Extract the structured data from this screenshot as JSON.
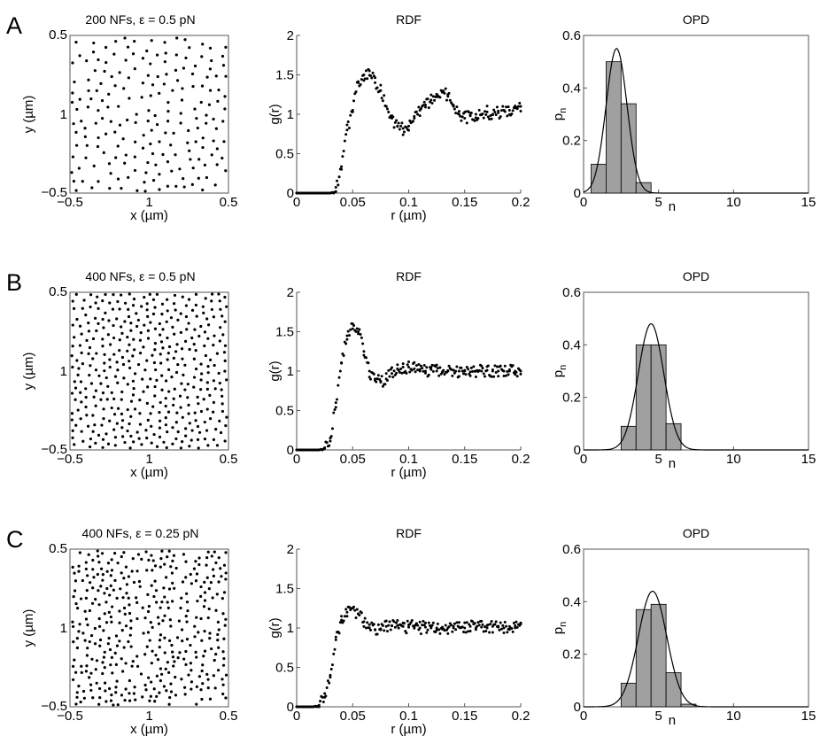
{
  "rows": [
    {
      "label": "A",
      "scatter": {
        "title": "200 NFs,  ε = 0.5 pN",
        "n_points": 200,
        "xlabel": "x (µm)",
        "ylabel": "y (µm)",
        "xlim": [
          -0.5,
          0.5
        ],
        "ylim": [
          -0.5,
          0.5
        ],
        "xticks": [
          "−0.5",
          "1",
          "0.5"
        ],
        "yticks": [
          "0.5",
          "1",
          "−0.5"
        ]
      },
      "rdf": {
        "title": "RDF",
        "xlabel": "r (µm)",
        "ylabel": "g(r)",
        "xlim": [
          0,
          0.2
        ],
        "ylim": [
          0,
          2
        ],
        "xticks": [
          "0",
          "0.05",
          "0.1",
          "0.15",
          "0.2"
        ],
        "yticks": [
          "0",
          "0.5",
          "1",
          "1.5",
          "2"
        ]
      },
      "opd": {
        "title": "OPD",
        "xlabel": "n",
        "ylabel_base": "p",
        "ylabel_sub": "n",
        "xlim": [
          0,
          15
        ],
        "ylim": [
          0,
          0.6
        ],
        "xticks": [
          "0",
          "5",
          "10",
          "15"
        ],
        "yticks": [
          "0",
          "0.2",
          "0.4",
          "0.6"
        ]
      }
    },
    {
      "label": "B",
      "scatter": {
        "title": "400 NFs,  ε = 0.5 pN",
        "n_points": 400,
        "xlabel": "x (µm)",
        "ylabel": "y (µm)",
        "xlim": [
          -0.5,
          0.5
        ],
        "ylim": [
          -0.5,
          0.5
        ],
        "xticks": [
          "−0.5",
          "1",
          "0.5"
        ],
        "yticks": [
          "0.5",
          "1",
          "−0.5"
        ]
      },
      "rdf": {
        "title": "RDF",
        "xlabel": "r (µm)",
        "ylabel": "g(r)",
        "xlim": [
          0,
          0.2
        ],
        "ylim": [
          0,
          2
        ],
        "xticks": [
          "0",
          "0.05",
          "0.1",
          "0.15",
          "0.2"
        ],
        "yticks": [
          "0",
          "0.5",
          "1",
          "1.5",
          "2"
        ]
      },
      "opd": {
        "title": "OPD",
        "xlabel": "n",
        "ylabel_base": "p",
        "ylabel_sub": "n",
        "xlim": [
          0,
          15
        ],
        "ylim": [
          0,
          0.6
        ],
        "xticks": [
          "0",
          "5",
          "10",
          "15"
        ],
        "yticks": [
          "0",
          "0.2",
          "0.4",
          "0.6"
        ]
      }
    },
    {
      "label": "C",
      "scatter": {
        "title": "400 NFs,  ε = 0.25 pN",
        "n_points": 400,
        "xlabel": "x (µm)",
        "ylabel": "y (µm)",
        "xlim": [
          -0.5,
          0.5
        ],
        "ylim": [
          -0.5,
          0.5
        ],
        "xticks": [
          "−0.5",
          "1",
          "0.5"
        ],
        "yticks": [
          "0.5",
          "1",
          "−0.5"
        ]
      },
      "rdf": {
        "title": "RDF",
        "xlabel": "r (µm)",
        "ylabel": "g(r)",
        "xlim": [
          0,
          0.2
        ],
        "ylim": [
          0,
          2
        ],
        "xticks": [
          "0",
          "0.05",
          "0.1",
          "0.15",
          "0.2"
        ],
        "yticks": [
          "0",
          "0.5",
          "1",
          "1.5",
          "2"
        ]
      },
      "opd": {
        "title": "OPD",
        "xlabel": "n",
        "ylabel_base": "p",
        "ylabel_sub": "n",
        "xlim": [
          0,
          15
        ],
        "ylim": [
          0,
          0.6
        ],
        "xticks": [
          "0",
          "5",
          "10",
          "15"
        ],
        "yticks": [
          "0",
          "0.2",
          "0.4",
          "0.6"
        ]
      }
    }
  ],
  "chart_data": [
    {
      "panel": "A-scatter",
      "type": "scatter",
      "title": "200 NFs,  ε = 0.5 pN",
      "xlabel": "x (µm)",
      "ylabel": "y (µm)",
      "xlim": [
        -0.5,
        0.5
      ],
      "ylim": [
        -0.5,
        0.5
      ],
      "n_points": 200,
      "distribution": "quasi-uniform, excluded-volume spacing"
    },
    {
      "panel": "A-RDF",
      "type": "scatter",
      "title": "RDF",
      "xlabel": "r (µm)",
      "ylabel": "g(r)",
      "xlim": [
        0,
        0.2
      ],
      "ylim": [
        0,
        2
      ],
      "x": [
        0.0,
        0.005,
        0.01,
        0.015,
        0.02,
        0.025,
        0.03,
        0.035,
        0.04,
        0.045,
        0.05,
        0.055,
        0.06,
        0.065,
        0.07,
        0.075,
        0.08,
        0.085,
        0.09,
        0.095,
        0.1,
        0.105,
        0.11,
        0.115,
        0.12,
        0.125,
        0.13,
        0.135,
        0.14,
        0.145,
        0.15,
        0.155,
        0.16,
        0.165,
        0.17,
        0.175,
        0.18,
        0.185,
        0.19,
        0.195,
        0.2
      ],
      "y": [
        0,
        0,
        0,
        0,
        0,
        0,
        0,
        0.02,
        0.3,
        0.8,
        1.05,
        1.4,
        1.5,
        1.55,
        1.4,
        1.3,
        1.1,
        0.95,
        0.85,
        0.82,
        0.85,
        0.95,
        1.05,
        1.12,
        1.18,
        1.22,
        1.28,
        1.25,
        1.1,
        1.0,
        0.95,
        0.98,
        1.0,
        1.0,
        1.03,
        1.0,
        1.02,
        1.05,
        1.05,
        1.08,
        1.1
      ]
    },
    {
      "panel": "A-OPD",
      "type": "bar",
      "title": "OPD",
      "xlabel": "n",
      "ylabel": "p_n",
      "xlim": [
        0,
        15
      ],
      "ylim": [
        0,
        0.6
      ],
      "bins": [
        1,
        2,
        3,
        4
      ],
      "values": [
        0.11,
        0.5,
        0.34,
        0.04
      ],
      "fit": {
        "kind": "gaussian",
        "peak_x": 2.2,
        "peak_y": 0.55,
        "sigma": 0.7
      }
    },
    {
      "panel": "B-scatter",
      "type": "scatter",
      "title": "400 NFs,  ε = 0.5 pN",
      "xlabel": "x (µm)",
      "ylabel": "y (µm)",
      "xlim": [
        -0.5,
        0.5
      ],
      "ylim": [
        -0.5,
        0.5
      ],
      "n_points": 400,
      "distribution": "quasi-uniform, excluded-volume spacing"
    },
    {
      "panel": "B-RDF",
      "type": "scatter",
      "title": "RDF",
      "xlabel": "r (µm)",
      "ylabel": "g(r)",
      "xlim": [
        0,
        0.2
      ],
      "ylim": [
        0,
        2
      ],
      "x": [
        0.0,
        0.005,
        0.01,
        0.015,
        0.02,
        0.025,
        0.03,
        0.035,
        0.04,
        0.045,
        0.05,
        0.055,
        0.06,
        0.065,
        0.07,
        0.075,
        0.08,
        0.085,
        0.09,
        0.095,
        0.1,
        0.105,
        0.11,
        0.115,
        0.12,
        0.125,
        0.13,
        0.135,
        0.14,
        0.145,
        0.15,
        0.155,
        0.16,
        0.165,
        0.17,
        0.175,
        0.18,
        0.185,
        0.19,
        0.195,
        0.2
      ],
      "y": [
        0,
        0,
        0,
        0,
        0,
        0.02,
        0.15,
        0.6,
        1.1,
        1.45,
        1.6,
        1.5,
        1.25,
        1.0,
        0.88,
        0.86,
        0.9,
        0.97,
        1.03,
        1.05,
        1.05,
        1.03,
        1.0,
        1.0,
        1.02,
        1.0,
        0.99,
        1.0,
        1.01,
        1.0,
        1.0,
        0.99,
        1.0,
        1.0,
        1.01,
        1.0,
        1.0,
        1.0,
        1.0,
        1.0,
        1.0
      ]
    },
    {
      "panel": "B-OPD",
      "type": "bar",
      "title": "OPD",
      "xlabel": "n",
      "ylabel": "p_n",
      "xlim": [
        0,
        15
      ],
      "ylim": [
        0,
        0.6
      ],
      "bins": [
        3,
        4,
        5,
        6
      ],
      "values": [
        0.09,
        0.4,
        0.4,
        0.1
      ],
      "fit": {
        "kind": "gaussian",
        "peak_x": 4.5,
        "peak_y": 0.48,
        "sigma": 0.85
      }
    },
    {
      "panel": "C-scatter",
      "type": "scatter",
      "title": "400 NFs,  ε = 0.25 pN",
      "xlabel": "x (µm)",
      "ylabel": "y (µm)",
      "xlim": [
        -0.5,
        0.5
      ],
      "ylim": [
        -0.5,
        0.5
      ],
      "n_points": 400,
      "distribution": "quasi-uniform, weaker excluded-volume spacing"
    },
    {
      "panel": "C-RDF",
      "type": "scatter",
      "title": "RDF",
      "xlabel": "r (µm)",
      "ylabel": "g(r)",
      "xlim": [
        0,
        0.2
      ],
      "ylim": [
        0,
        2
      ],
      "x": [
        0.0,
        0.005,
        0.01,
        0.015,
        0.02,
        0.025,
        0.03,
        0.035,
        0.04,
        0.045,
        0.05,
        0.055,
        0.06,
        0.065,
        0.07,
        0.075,
        0.08,
        0.085,
        0.09,
        0.095,
        0.1,
        0.105,
        0.11,
        0.115,
        0.12,
        0.125,
        0.13,
        0.135,
        0.14,
        0.145,
        0.15,
        0.155,
        0.16,
        0.165,
        0.17,
        0.175,
        0.18,
        0.185,
        0.19,
        0.195,
        0.2
      ],
      "y": [
        0,
        0,
        0,
        0,
        0.02,
        0.12,
        0.4,
        0.85,
        1.1,
        1.2,
        1.25,
        1.18,
        1.08,
        1.0,
        0.98,
        0.99,
        1.02,
        1.03,
        1.03,
        1.02,
        1.01,
        1.02,
        1.0,
        1.01,
        1.0,
        1.0,
        1.01,
        1.0,
        1.0,
        1.01,
        1.0,
        1.02,
        1.0,
        1.01,
        1.0,
        1.02,
        1.01,
        1.0,
        1.02,
        1.03,
        1.05
      ]
    },
    {
      "panel": "C-OPD",
      "type": "bar",
      "title": "OPD",
      "xlabel": "n",
      "ylabel": "p_n",
      "xlim": [
        0,
        15
      ],
      "ylim": [
        0,
        0.6
      ],
      "bins": [
        3,
        4,
        5,
        6,
        7
      ],
      "values": [
        0.09,
        0.37,
        0.39,
        0.13,
        0.01
      ],
      "fit": {
        "kind": "gaussian",
        "peak_x": 4.6,
        "peak_y": 0.44,
        "sigma": 0.95
      }
    }
  ]
}
